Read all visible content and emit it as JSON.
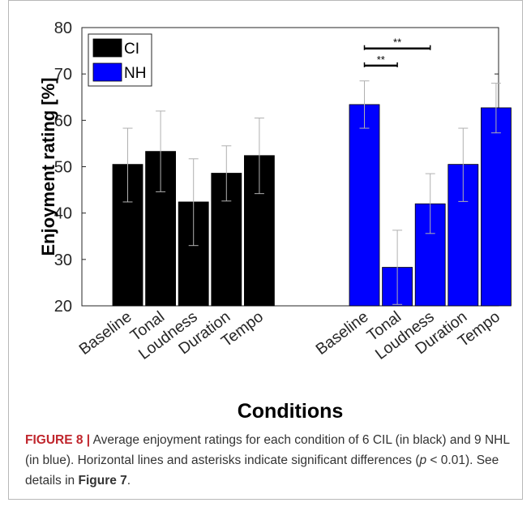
{
  "chart_data": {
    "type": "bar",
    "title": "",
    "xlabel": "Conditions",
    "ylabel": "Enjoyment rating [%]",
    "ylim": [
      20,
      80
    ],
    "yticks": [
      20,
      30,
      40,
      50,
      60,
      70,
      80
    ],
    "grid": false,
    "legend_position": "top-left",
    "groups": [
      {
        "name": "CI",
        "color": "#000000",
        "categories": [
          "Baseline",
          "Tonal",
          "Loudness",
          "Duration",
          "Tempo"
        ],
        "values": [
          50.5,
          53.3,
          42.4,
          48.6,
          52.4
        ],
        "error_low": [
          42.4,
          44.6,
          33.0,
          42.6,
          44.2
        ],
        "error_high": [
          58.3,
          62.0,
          51.7,
          54.5,
          60.5
        ]
      },
      {
        "name": "NH",
        "color": "#0000ff",
        "categories": [
          "Baseline",
          "Tonal",
          "Loudness",
          "Duration",
          "Tempo"
        ],
        "values": [
          63.4,
          28.3,
          42.0,
          50.5,
          62.7
        ],
        "error_low": [
          58.3,
          20.3,
          35.6,
          42.5,
          57.3
        ],
        "error_high": [
          68.5,
          36.3,
          48.5,
          58.3,
          68.0
        ]
      }
    ],
    "significance": [
      {
        "group": "NH",
        "from": "Baseline",
        "to": "Tonal",
        "label": "**",
        "y": 71.8
      },
      {
        "group": "NH",
        "from": "Baseline",
        "to": "Loudness",
        "label": "**",
        "y": 75.5
      }
    ]
  },
  "caption": {
    "label": "FIGURE 8 |",
    "text_before": " Average enjoyment ratings for each condition of 6 CIL (in black) and 9 NHL (in blue). Horizontal lines and asterisks indicate significant differences (",
    "p_symbol": "p",
    "text_mid": " < 0.01). See details in ",
    "ref": "Figure 7",
    "text_after": "."
  }
}
